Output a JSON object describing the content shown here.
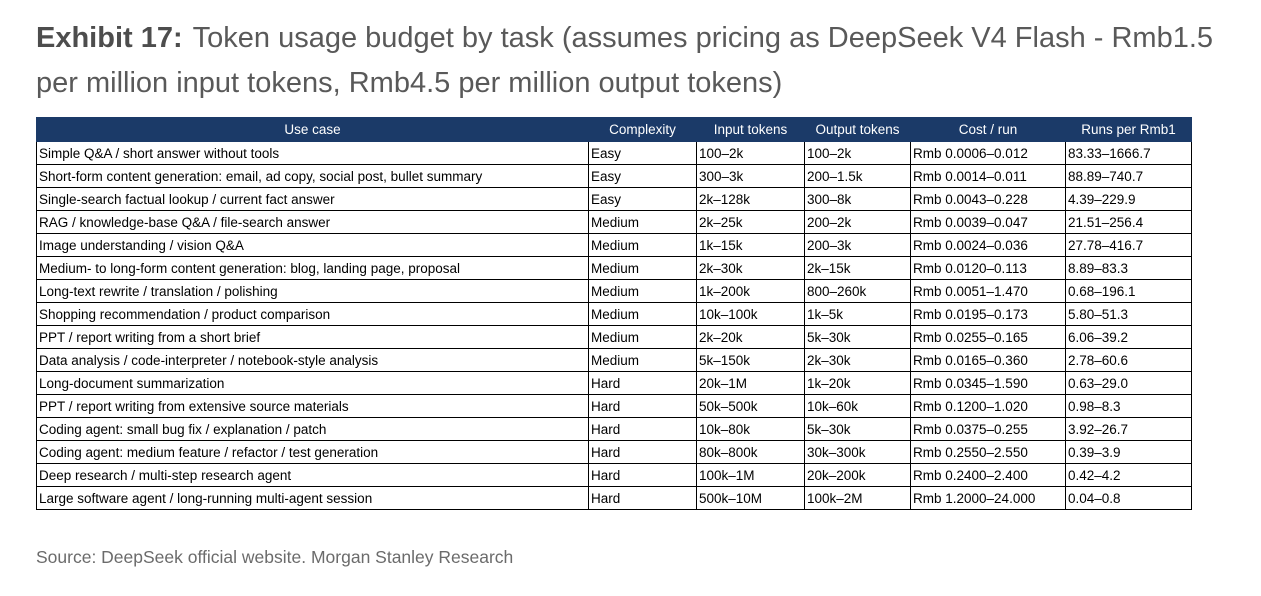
{
  "header": {
    "exhibit_label": "Exhibit 17:",
    "title": "Token usage budget by task (assumes pricing as DeepSeek V4 Flash - Rmb1.5 per million input tokens, Rmb4.5 per million output tokens)"
  },
  "table": {
    "columns": [
      "Use case",
      "Complexity",
      "Input tokens",
      "Output tokens",
      "Cost / run",
      "Runs per Rmb1"
    ],
    "rows": [
      [
        "Simple Q&A / short answer without tools",
        "Easy",
        "100–2k",
        "100–2k",
        "Rmb 0.0006–0.012",
        "83.33–1666.7"
      ],
      [
        "Short-form content generation: email, ad copy, social post, bullet summary",
        "Easy",
        "300–3k",
        "200–1.5k",
        "Rmb 0.0014–0.011",
        "88.89–740.7"
      ],
      [
        "Single-search factual lookup / current fact answer",
        "Easy",
        "2k–128k",
        "300–8k",
        "Rmb 0.0043–0.228",
        "4.39–229.9"
      ],
      [
        "RAG / knowledge-base Q&A / file-search answer",
        "Medium",
        "2k–25k",
        "200–2k",
        "Rmb 0.0039–0.047",
        "21.51–256.4"
      ],
      [
        "Image understanding / vision Q&A",
        "Medium",
        "1k–15k",
        "200–3k",
        "Rmb 0.0024–0.036",
        "27.78–416.7"
      ],
      [
        "Medium- to long-form content generation: blog, landing page, proposal",
        "Medium",
        "2k–30k",
        "2k–15k",
        "Rmb 0.0120–0.113",
        "8.89–83.3"
      ],
      [
        "Long-text rewrite / translation / polishing",
        "Medium",
        "1k–200k",
        "800–260k",
        "Rmb 0.0051–1.470",
        "0.68–196.1"
      ],
      [
        "Shopping recommendation / product comparison",
        "Medium",
        "10k–100k",
        "1k–5k",
        "Rmb 0.0195–0.173",
        "5.80–51.3"
      ],
      [
        "PPT / report writing from a short brief",
        "Medium",
        "2k–20k",
        "5k–30k",
        "Rmb 0.0255–0.165",
        "6.06–39.2"
      ],
      [
        "Data analysis / code-interpreter / notebook-style analysis",
        "Medium",
        "5k–150k",
        "2k–30k",
        "Rmb 0.0165–0.360",
        "2.78–60.6"
      ],
      [
        "Long-document summarization",
        "Hard",
        "20k–1M",
        "1k–20k",
        "Rmb 0.0345–1.590",
        "0.63–29.0"
      ],
      [
        "PPT / report writing from extensive source materials",
        "Hard",
        "50k–500k",
        "10k–60k",
        "Rmb 0.1200–1.020",
        "0.98–8.3"
      ],
      [
        "Coding agent: small bug fix / explanation / patch",
        "Hard",
        "10k–80k",
        "5k–30k",
        "Rmb 0.0375–0.255",
        "3.92–26.7"
      ],
      [
        "Coding agent: medium feature / refactor / test generation",
        "Hard",
        "80k–800k",
        "30k–300k",
        "Rmb 0.2550–2.550",
        "0.39–3.9"
      ],
      [
        "Deep research / multi-step research agent",
        "Hard",
        "100k–1M",
        "20k–200k",
        "Rmb 0.2400–2.400",
        "0.42–4.2"
      ],
      [
        "Large software agent / long-running multi-agent session",
        "Hard",
        "500k–10M",
        "100k–2M",
        "Rmb 1.2000–24.000",
        "0.04–0.8"
      ]
    ]
  },
  "footer": {
    "source": "Source: DeepSeek official website. Morgan Stanley Research"
  },
  "colors": {
    "header_background": "#1b3a68",
    "header_text": "#ffffff",
    "title_text": "#595959"
  }
}
